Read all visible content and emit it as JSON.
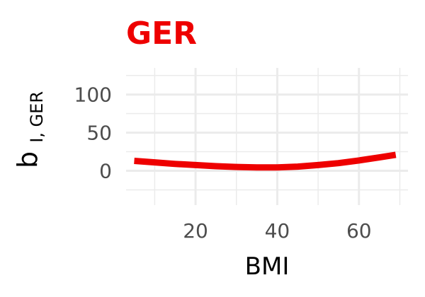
{
  "chart_data": {
    "type": "line",
    "title": "GER",
    "xlabel": "BMI",
    "ylabel": "b",
    "ylabel_subscript": "I, GER",
    "xlim": [
      3,
      72
    ],
    "ylim": [
      -45,
      135
    ],
    "x_ticks": [
      20,
      40,
      60
    ],
    "x_tick_labels": [
      "20",
      "40",
      "60"
    ],
    "y_ticks": [
      0,
      50,
      100
    ],
    "y_tick_labels": [
      "0",
      "50",
      "100"
    ],
    "grid": true,
    "legend": "none",
    "series": [
      {
        "color": "#EE0000",
        "x": [
          5,
          10,
          15,
          20,
          25,
          30,
          35,
          40,
          45,
          50,
          55,
          60,
          65,
          69
        ],
        "y": [
          13,
          11,
          9,
          7.5,
          6,
          5,
          4.5,
          4.5,
          5.5,
          7.5,
          10,
          13.5,
          17.5,
          21
        ]
      }
    ]
  },
  "colors": {
    "title": "#EE0000",
    "line": "#EE0000",
    "grid": "#EBEBEB",
    "background": "#FFFFFF"
  }
}
